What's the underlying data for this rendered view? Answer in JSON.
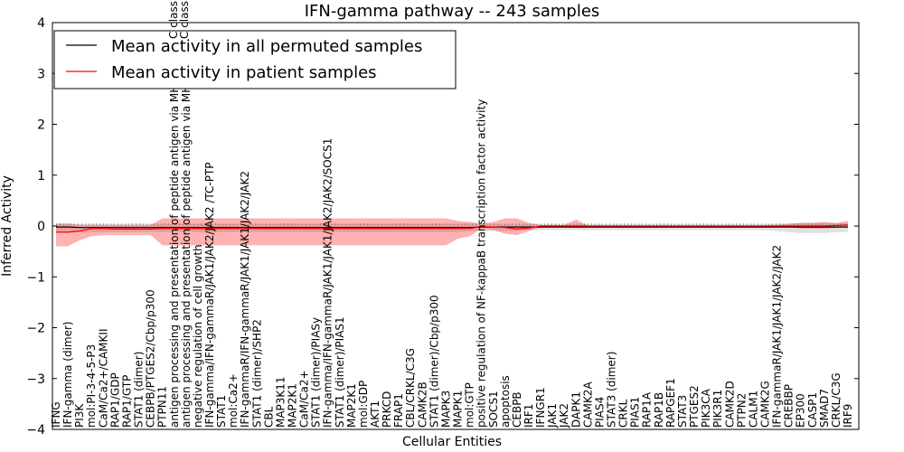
{
  "chart_data": {
    "type": "line",
    "title": "IFN-gamma pathway -- 243 samples",
    "xlabel": "Cellular Entities",
    "ylabel": "Inferred Activity",
    "ylim": [
      -4,
      4
    ],
    "yticks": [
      -4,
      -3,
      -2,
      -1,
      0,
      1,
      2,
      3,
      4
    ],
    "ytick_labels": [
      "−4",
      "−3",
      "−2",
      "−1",
      "0",
      "1",
      "2",
      "3",
      "4"
    ],
    "grid": false,
    "legend_position": "top-left",
    "clipped_labels_top": [
      "C class",
      "C class"
    ],
    "categories": [
      "IFNG",
      "IFN-gamma (dimer)",
      "PI3K",
      "mol:PI-3-4-5-P3",
      "CaM/Ca2+/CAMKII",
      "RAP1/GDP",
      "RAP1/GTP",
      "STAT1 (dimer)",
      "CEBPB/PTGES2/Cbp/p300",
      "PTPN11",
      "antigen processing and presentation of peptide antigen via MHC class II",
      "antigen processing and presentation of peptide antigen via MHC class I",
      "negative regulation of cell growth",
      "IFN-gamma/IFN-gammaR/JAK1/JAK2/JAK2   /TC-PTP",
      "STAT1",
      "mol:Ca2+",
      "IFN-gammaR/IFN-gammaR/JAK1/JAK1/JAK2/JAK2",
      "STAT1 (dimer)/SHP2",
      "CBL",
      "MAP3K11",
      "MAP2K1",
      "CaM/Ca2+",
      "STAT1 (dimer)/PIASy",
      "IFN-gamma/IFN-gammaR/JAK1/JAK1/JAK2/JAK2/SOCS1",
      "STAT1 (dimer)/PIAS1",
      "MAP2K1",
      "mol:GDP",
      "AKT1",
      "PRKCD",
      "FRAP1",
      "CBL/CRKL/C3G",
      "CAMK2B",
      "STAT1 (dimer)/Cbp/p300",
      "MAPK3",
      "MAPK1",
      "mol:GTP",
      "positive regulation of NF-kappaB transcription factor activity",
      "SOCS1",
      "apoptosis",
      "CEBPB",
      "IRF1",
      "IFNGR1",
      "JAK1",
      "JAK2",
      "DAPK1",
      "CAMK2A",
      "PIAS4",
      "STAT3 (dimer)",
      "CRKL",
      "PIAS1",
      "RAP1A",
      "RAP1B",
      "RAPGEF1",
      "STAT3",
      "PTGES2",
      "PIK3CA",
      "PIK3R1",
      "CAMK2D",
      "PTPN2",
      "CALM1",
      "CAMK2G",
      "IFN-gammaR/JAK1/JAK1/JAK2/JAK2",
      "CREBBP",
      "EP300",
      "CASP1",
      "SMAD7",
      "CRKL/C3G",
      "IRF9"
    ],
    "series": [
      {
        "name": "Mean activity in all permuted samples",
        "color": "#000000",
        "values": [
          -0.02,
          -0.02,
          -0.03,
          -0.03,
          -0.03,
          -0.03,
          -0.03,
          -0.03,
          -0.03,
          -0.03,
          -0.03,
          -0.03,
          -0.03,
          -0.03,
          -0.03,
          -0.03,
          -0.03,
          -0.03,
          -0.03,
          -0.03,
          -0.03,
          -0.03,
          -0.03,
          -0.03,
          -0.03,
          -0.03,
          -0.03,
          -0.03,
          -0.03,
          -0.03,
          -0.03,
          -0.03,
          -0.03,
          -0.03,
          -0.03,
          -0.03,
          -0.02,
          -0.02,
          -0.02,
          -0.02,
          -0.02,
          -0.02,
          -0.02,
          -0.02,
          -0.02,
          -0.02,
          -0.02,
          -0.02,
          -0.02,
          -0.02,
          -0.02,
          -0.02,
          -0.02,
          -0.02,
          -0.02,
          -0.02,
          -0.02,
          -0.02,
          -0.02,
          -0.02,
          -0.02,
          -0.02,
          -0.02,
          -0.02,
          -0.02,
          -0.02,
          -0.02,
          -0.02
        ],
        "lower": [
          -0.1,
          -0.1,
          -0.12,
          -0.12,
          -0.12,
          -0.12,
          -0.12,
          -0.12,
          -0.12,
          -0.12,
          -0.12,
          -0.12,
          -0.12,
          -0.12,
          -0.12,
          -0.12,
          -0.12,
          -0.12,
          -0.12,
          -0.12,
          -0.12,
          -0.12,
          -0.12,
          -0.12,
          -0.12,
          -0.12,
          -0.12,
          -0.12,
          -0.12,
          -0.12,
          -0.12,
          -0.12,
          -0.12,
          -0.12,
          -0.12,
          -0.1,
          -0.1,
          -0.1,
          -0.1,
          -0.1,
          -0.08,
          -0.08,
          -0.08,
          -0.08,
          -0.08,
          -0.08,
          -0.08,
          -0.08,
          -0.08,
          -0.08,
          -0.08,
          -0.08,
          -0.08,
          -0.08,
          -0.08,
          -0.08,
          -0.08,
          -0.08,
          -0.08,
          -0.08,
          -0.08,
          -0.1,
          -0.12,
          -0.14,
          -0.14,
          -0.14,
          -0.12,
          -0.12
        ],
        "upper": [
          0.04,
          0.04,
          0.04,
          0.04,
          0.04,
          0.04,
          0.04,
          0.04,
          0.04,
          0.04,
          0.04,
          0.04,
          0.04,
          0.04,
          0.04,
          0.04,
          0.04,
          0.04,
          0.04,
          0.04,
          0.04,
          0.04,
          0.04,
          0.04,
          0.04,
          0.04,
          0.04,
          0.04,
          0.04,
          0.04,
          0.04,
          0.04,
          0.04,
          0.04,
          0.04,
          0.04,
          0.03,
          0.03,
          0.03,
          0.03,
          0.03,
          0.03,
          0.03,
          0.03,
          0.03,
          0.03,
          0.03,
          0.03,
          0.03,
          0.03,
          0.03,
          0.03,
          0.03,
          0.03,
          0.03,
          0.03,
          0.03,
          0.03,
          0.03,
          0.03,
          0.03,
          0.04,
          0.05,
          0.06,
          0.06,
          0.06,
          0.05,
          0.05
        ]
      },
      {
        "name": "Mean activity in patient samples",
        "color": "#ff0000",
        "values": [
          -0.12,
          -0.12,
          -0.1,
          -0.05,
          -0.05,
          -0.06,
          -0.06,
          -0.06,
          -0.06,
          -0.05,
          -0.05,
          -0.05,
          -0.05,
          -0.05,
          -0.05,
          -0.05,
          -0.05,
          -0.05,
          -0.05,
          -0.05,
          -0.05,
          -0.05,
          -0.05,
          -0.05,
          -0.05,
          -0.05,
          -0.05,
          -0.05,
          -0.05,
          -0.05,
          -0.05,
          -0.05,
          -0.05,
          -0.05,
          -0.05,
          -0.05,
          -0.01,
          -0.02,
          -0.03,
          -0.06,
          -0.04,
          0.0,
          0.0,
          0.0,
          0.0,
          0.0,
          0.0,
          0.0,
          0.0,
          0.0,
          0.0,
          0.0,
          0.0,
          0.0,
          0.0,
          0.0,
          0.0,
          0.0,
          0.0,
          0.0,
          0.0,
          0.0,
          0.0,
          0.0,
          0.0,
          0.0,
          0.01,
          0.02
        ],
        "lower": [
          -0.4,
          -0.4,
          -0.28,
          -0.2,
          -0.18,
          -0.18,
          -0.18,
          -0.18,
          -0.18,
          -0.38,
          -0.38,
          -0.38,
          -0.38,
          -0.38,
          -0.38,
          -0.38,
          -0.38,
          -0.38,
          -0.38,
          -0.38,
          -0.38,
          -0.38,
          -0.38,
          -0.38,
          -0.38,
          -0.38,
          -0.38,
          -0.38,
          -0.38,
          -0.38,
          -0.38,
          -0.38,
          -0.38,
          -0.38,
          -0.25,
          -0.2,
          -0.05,
          -0.08,
          -0.15,
          -0.18,
          -0.1,
          -0.02,
          -0.02,
          -0.02,
          -0.02,
          -0.01,
          -0.01,
          -0.01,
          -0.01,
          -0.01,
          -0.01,
          -0.01,
          -0.01,
          -0.01,
          -0.01,
          -0.01,
          -0.01,
          -0.01,
          -0.01,
          -0.01,
          -0.01,
          -0.01,
          -0.02,
          -0.05,
          -0.05,
          -0.05,
          -0.04,
          -0.02
        ],
        "upper": [
          0.05,
          0.05,
          0.02,
          0.02,
          0.02,
          0.02,
          0.02,
          0.02,
          0.02,
          0.15,
          0.15,
          0.15,
          0.15,
          0.15,
          0.15,
          0.15,
          0.15,
          0.15,
          0.15,
          0.15,
          0.15,
          0.15,
          0.15,
          0.15,
          0.15,
          0.15,
          0.15,
          0.15,
          0.15,
          0.15,
          0.15,
          0.15,
          0.15,
          0.15,
          0.1,
          0.08,
          0.05,
          0.08,
          0.15,
          0.15,
          0.06,
          0.02,
          0.02,
          0.02,
          0.13,
          0.01,
          0.01,
          0.01,
          0.01,
          0.01,
          0.01,
          0.01,
          0.01,
          0.01,
          0.01,
          0.01,
          0.01,
          0.01,
          0.01,
          0.01,
          0.01,
          0.02,
          0.04,
          0.06,
          0.06,
          0.08,
          0.06,
          0.1
        ]
      }
    ]
  }
}
